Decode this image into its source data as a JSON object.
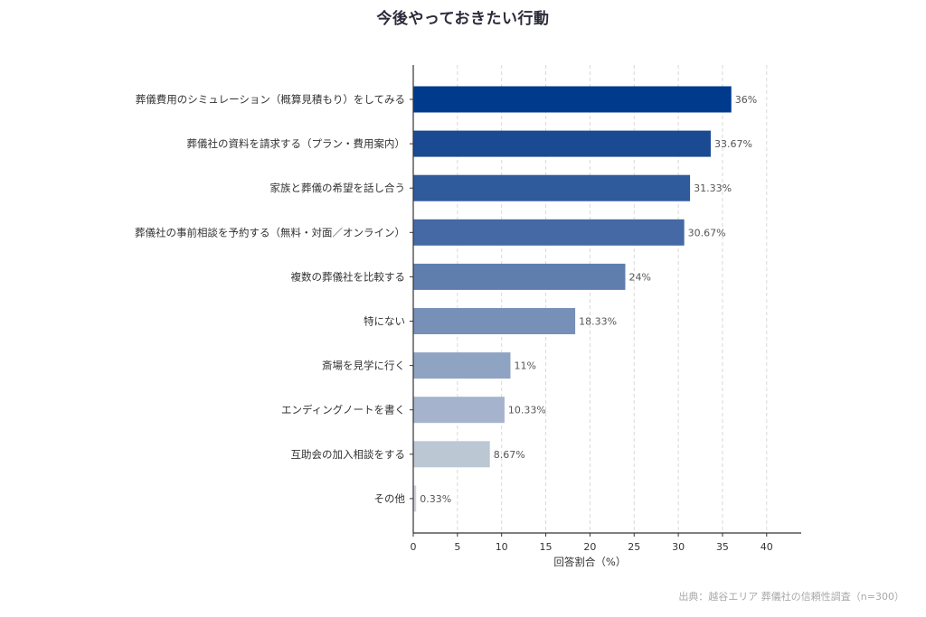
{
  "chart_data": {
    "type": "bar",
    "orientation": "horizontal",
    "title": "今後やっておきたい行動",
    "xlabel": "回答割合（%）",
    "ylabel": "",
    "xlim": [
      0,
      44
    ],
    "xticks": [
      0,
      5,
      10,
      15,
      20,
      25,
      30,
      35,
      40
    ],
    "grid": "vertical dashed",
    "categories": [
      "葬儀費用のシミュレーション（概算見積もり）をしてみる",
      "葬儀社の資料を請求する（プラン・費用案内）",
      "家族と葬儀の希望を話し合う",
      "葬儀社の事前相談を予約する（無料・対面／オンライン）",
      "複数の葬儀社を比較する",
      "特にない",
      "斎場を見学に行く",
      "エンディングノートを書く",
      "互助会の加入相談をする",
      "その他"
    ],
    "values": [
      36,
      33.67,
      31.33,
      30.67,
      24,
      18.33,
      11,
      10.33,
      8.67,
      0.33
    ],
    "value_labels": [
      "36%",
      "33.67%",
      "31.33%",
      "30.67%",
      "24%",
      "18.33%",
      "11%",
      "10.33%",
      "8.67%",
      "0.33%"
    ],
    "colors": [
      "#003a8c",
      "#1a4a91",
      "#2f5a9c",
      "#4469a4",
      "#5f7eae",
      "#7790b7",
      "#8fa4c2",
      "#a5b4cc",
      "#bcc7d4",
      "#d0d4da"
    ]
  },
  "source": "出典：越谷エリア 葬儀社の信頼性調査（n=300）"
}
